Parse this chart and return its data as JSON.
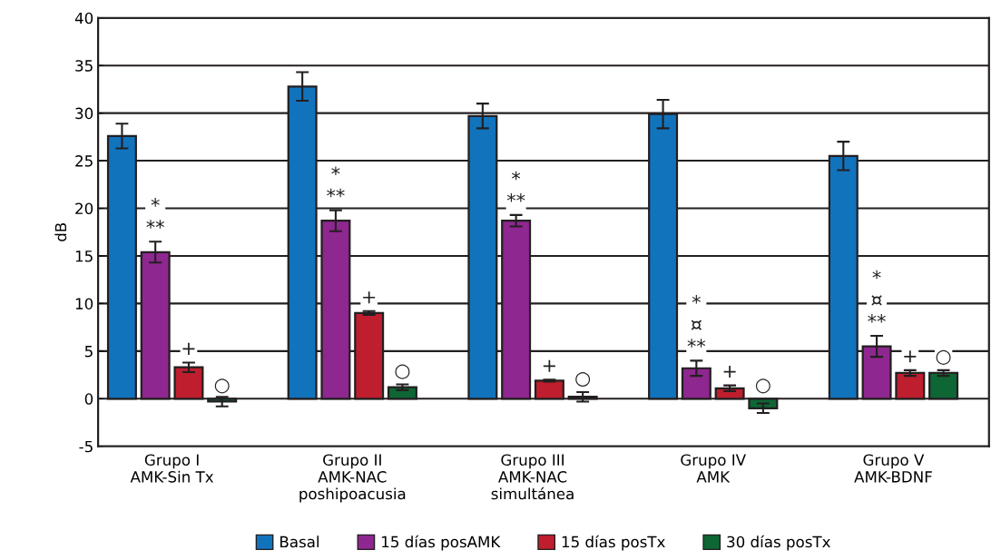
{
  "chart_data": {
    "type": "bar",
    "ylabel": "dB",
    "categories": [
      "Grupo I\nAMK-Sin Tx",
      "Grupo II\nAMK-NAC\nposhipoacusia",
      "Grupo III\nAMK-NAC\nsimultánea",
      "Grupo IV\nAMK",
      "Grupo V\nAMK-BDNF"
    ],
    "series": [
      {
        "name": "Basal",
        "color": "#1273bd",
        "values": [
          27.6,
          32.8,
          29.7,
          29.9,
          25.5
        ],
        "errors": [
          1.3,
          1.5,
          1.3,
          1.5,
          1.5
        ]
      },
      {
        "name": "15 días posAMK",
        "color": "#8e278f",
        "values": [
          15.4,
          18.7,
          18.7,
          3.2,
          5.5
        ],
        "errors": [
          1.1,
          1.1,
          0.6,
          0.8,
          1.1
        ],
        "value_labels": [
          "*\n**",
          "*\n**",
          "*\n**",
          "*\n¤\n**",
          "*\n¤\n**"
        ]
      },
      {
        "name": "15 días posTx",
        "color": "#be1e2d",
        "values": [
          3.3,
          9.0,
          1.9,
          1.1,
          2.7
        ],
        "errors": [
          0.5,
          0.2,
          0.1,
          0.3,
          0.3
        ],
        "value_labels": [
          "+",
          "+",
          "+",
          "+",
          "+"
        ]
      },
      {
        "name": "30 días posTx",
        "color": "#0e6634",
        "values": [
          -0.3,
          1.2,
          0.2,
          -1.0,
          2.7
        ],
        "errors": [
          0.5,
          0.3,
          0.5,
          0.5,
          0.3
        ],
        "value_labels": [
          "○",
          "○",
          "○",
          "○",
          "○"
        ]
      }
    ],
    "ylim": [
      -5,
      40
    ],
    "yticks": [
      -5,
      0,
      5,
      10,
      15,
      20,
      25,
      30,
      35,
      40
    ],
    "grid": "y",
    "legend": "bottom"
  }
}
